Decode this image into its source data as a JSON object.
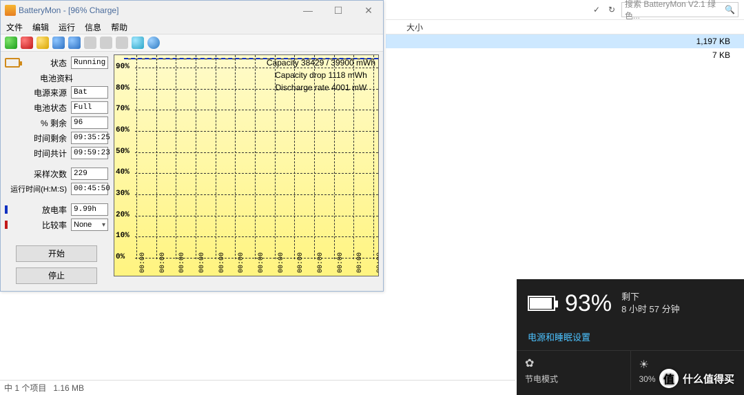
{
  "explorer": {
    "refresh_icon": "↻",
    "search_placeholder": "搜索 BatteryMon V2.1 绿色...",
    "col_size": "大小",
    "rows": [
      {
        "size": "1,197 KB",
        "selected": true
      },
      {
        "size": "7 KB",
        "selected": false
      }
    ],
    "status_items": "中 1 个项目",
    "status_size": "1.16 MB"
  },
  "bm": {
    "title": "BatteryMon - [96% Charge]",
    "menus": [
      "文件",
      "编辑",
      "运行",
      "信息",
      "帮助"
    ],
    "status_label": "状态",
    "status_value": "Running",
    "section": "电池资料",
    "fields": {
      "power_source_label": "电源来源",
      "power_source_value": "Bat",
      "batt_state_label": "电池状态",
      "batt_state_value": "Full",
      "pct_remain_label": "% 剩余",
      "pct_remain_value": "96",
      "time_remain_label": "时间剩余",
      "time_remain_value": "09:35:25",
      "time_total_label": "时间共计",
      "time_total_value": "09:59:23",
      "samples_label": "采样次数",
      "samples_value": "229",
      "run_time_label": "运行时间(H:M:S)",
      "run_time_value": "00:45:50",
      "discharge_label": "放电率",
      "discharge_value": "9.99h",
      "compare_label": "比较率",
      "compare_value": "None"
    },
    "btn_start": "开始",
    "btn_stop": "停止"
  },
  "chart": {
    "y_ticks": [
      "90%",
      "80%",
      "70%",
      "60%",
      "50%",
      "40%",
      "30%",
      "20%",
      "10%",
      "0%"
    ],
    "x_ticks": [
      "00:00",
      "00:00",
      "00:00",
      "00:00",
      "00:00",
      "00:00",
      "00:00",
      "00:00",
      "00:00",
      "00:00",
      "00:00",
      "00:00",
      "00:00"
    ],
    "info_capacity": "Capacity 38429 / 39900 mWh",
    "info_drop": "Capacity drop 1118 mWh",
    "info_discharge": "Discharge rate 4001 mW",
    "bg_top": "#fffbc9",
    "bg_bottom": "#fff480",
    "grid_color": "#333333"
  },
  "popup": {
    "pct": "93%",
    "remain_label": "剩下",
    "remain_value": "8 小时 57 分钟",
    "settings_link": "电源和睡眠设置",
    "saver_label": "节电模式",
    "brightness_label": "30%",
    "bg": "#1f1f1f",
    "link_color": "#4cc2ff"
  },
  "watermark": {
    "logo": "值",
    "text": "什么值得买"
  }
}
